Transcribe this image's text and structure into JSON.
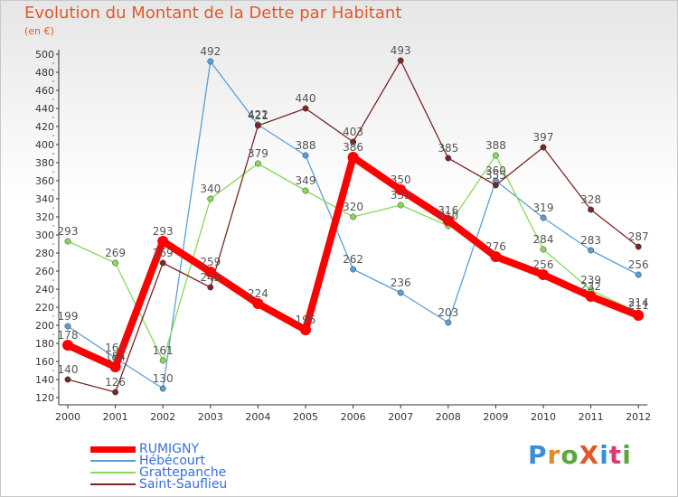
{
  "title": "Evolution du Montant de la Dette par Habitant",
  "subtitle": "(en €)",
  "logo": {
    "text": "ProXiti",
    "colors": [
      "#3a8fd8",
      "#e08a2a",
      "#59a83a",
      "#e0592a",
      "#3a8fd8",
      "#d83a6f",
      "#59a83a"
    ]
  },
  "chart_data": {
    "type": "line",
    "x": [
      2000,
      2001,
      2002,
      2003,
      2004,
      2005,
      2006,
      2007,
      2008,
      2009,
      2010,
      2011,
      2012
    ],
    "ylim": [
      120,
      500
    ],
    "ytick_step": 20,
    "grid": false,
    "legend_position": "bottom-left",
    "series": [
      {
        "name": "RUMIGNY",
        "color": "#ff0000",
        "values": [
          178,
          154,
          293,
          259,
          224,
          195,
          386,
          350,
          316,
          276,
          256,
          232,
          211
        ],
        "labels": [
          "178",
          "154",
          "293",
          "259",
          "224",
          "195",
          "386",
          "350",
          "316",
          "276",
          "256",
          "232",
          "211"
        ]
      },
      {
        "name": "Hébécourt",
        "color": "#5a9fd6",
        "values": [
          199,
          164,
          130,
          492,
          422,
          388,
          262,
          236,
          203,
          360,
          319,
          283,
          256
        ],
        "labels": [
          "199",
          "164",
          "130",
          "492",
          "422",
          "388",
          "262",
          "236",
          "203",
          "360",
          "319",
          "283",
          "256"
        ]
      },
      {
        "name": "Grattepanche",
        "color": "#8cd65a",
        "values": [
          293,
          269,
          161,
          340,
          379,
          349,
          320,
          333,
          310,
          388,
          284,
          239,
          214
        ],
        "labels": [
          "293",
          "269",
          "161",
          "340",
          "379",
          "349",
          "320",
          "333",
          "310",
          "388",
          "284",
          "239",
          "214"
        ]
      },
      {
        "name": "Saint-Sauflieu",
        "color": "#7a2626",
        "values": [
          140,
          126,
          269,
          242,
          421,
          440,
          403,
          493,
          385,
          355,
          397,
          328,
          287
        ],
        "labels": [
          "140",
          "126",
          "269",
          "242",
          "421",
          "440",
          "403",
          "493",
          "385",
          "355",
          "397",
          "328",
          "287"
        ]
      }
    ]
  }
}
